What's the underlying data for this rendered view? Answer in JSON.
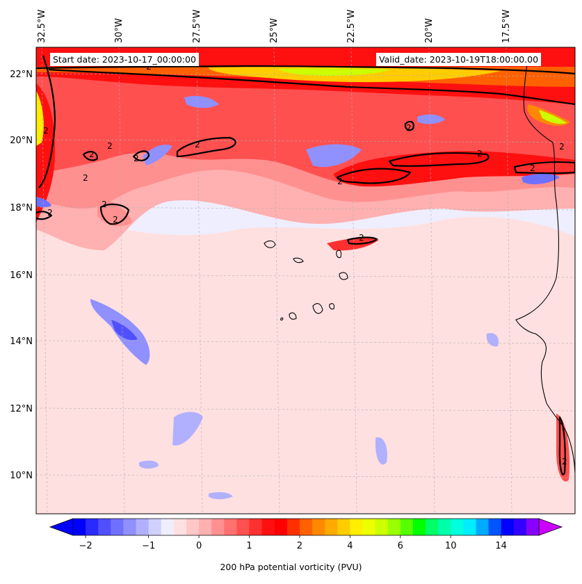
{
  "map": {
    "start_label": "Start date: 2023-10-17_00:00:00",
    "valid_label": "Valid_date: 2023-10-19T18:00:00.00",
    "lon_labels": [
      "32.5°W",
      "30°W",
      "27.5°W",
      "25°W",
      "22.5°W",
      "20°W",
      "17.5°W"
    ],
    "lat_labels": [
      "22°N",
      "20°N",
      "18°N",
      "16°N",
      "14°N",
      "12°N",
      "10°N"
    ],
    "contour_label": "2",
    "colors": {
      "ocean_background": "#eeeeff",
      "contour_line": "#000000",
      "coastline": "#000000",
      "gridline": "#b0b0b0"
    }
  },
  "colorbar": {
    "title": "200 hPa potential vorticity (PVU)",
    "tick_labels": [
      "−2",
      "−1",
      "0",
      "1",
      "2",
      "4",
      "6",
      "10",
      "14"
    ],
    "tick_bins": [
      1,
      6,
      10,
      14,
      18,
      22,
      26,
      30,
      34
    ],
    "colors": [
      "#0000ff",
      "#2a2aff",
      "#5050ff",
      "#7070ff",
      "#9090ff",
      "#b0b0ff",
      "#d0d0ff",
      "#eeeeff",
      "#ffe0e0",
      "#ffc8c8",
      "#ffb0b0",
      "#ff9090",
      "#ff7070",
      "#ff5050",
      "#ff3030",
      "#ff1010",
      "#ff0000",
      "#ff3000",
      "#ff6000",
      "#ff8800",
      "#ffaa00",
      "#ffcc00",
      "#ffee00",
      "#eeff00",
      "#ccff00",
      "#99ff00",
      "#55ff00",
      "#00ff00",
      "#00ff66",
      "#00ffaa",
      "#00ffdd",
      "#00eeff",
      "#00aaff",
      "#0055ff",
      "#0000ff",
      "#3300ff",
      "#8800ff"
    ],
    "under_color": "#0000ff",
    "over_color": "#cc00ff"
  }
}
